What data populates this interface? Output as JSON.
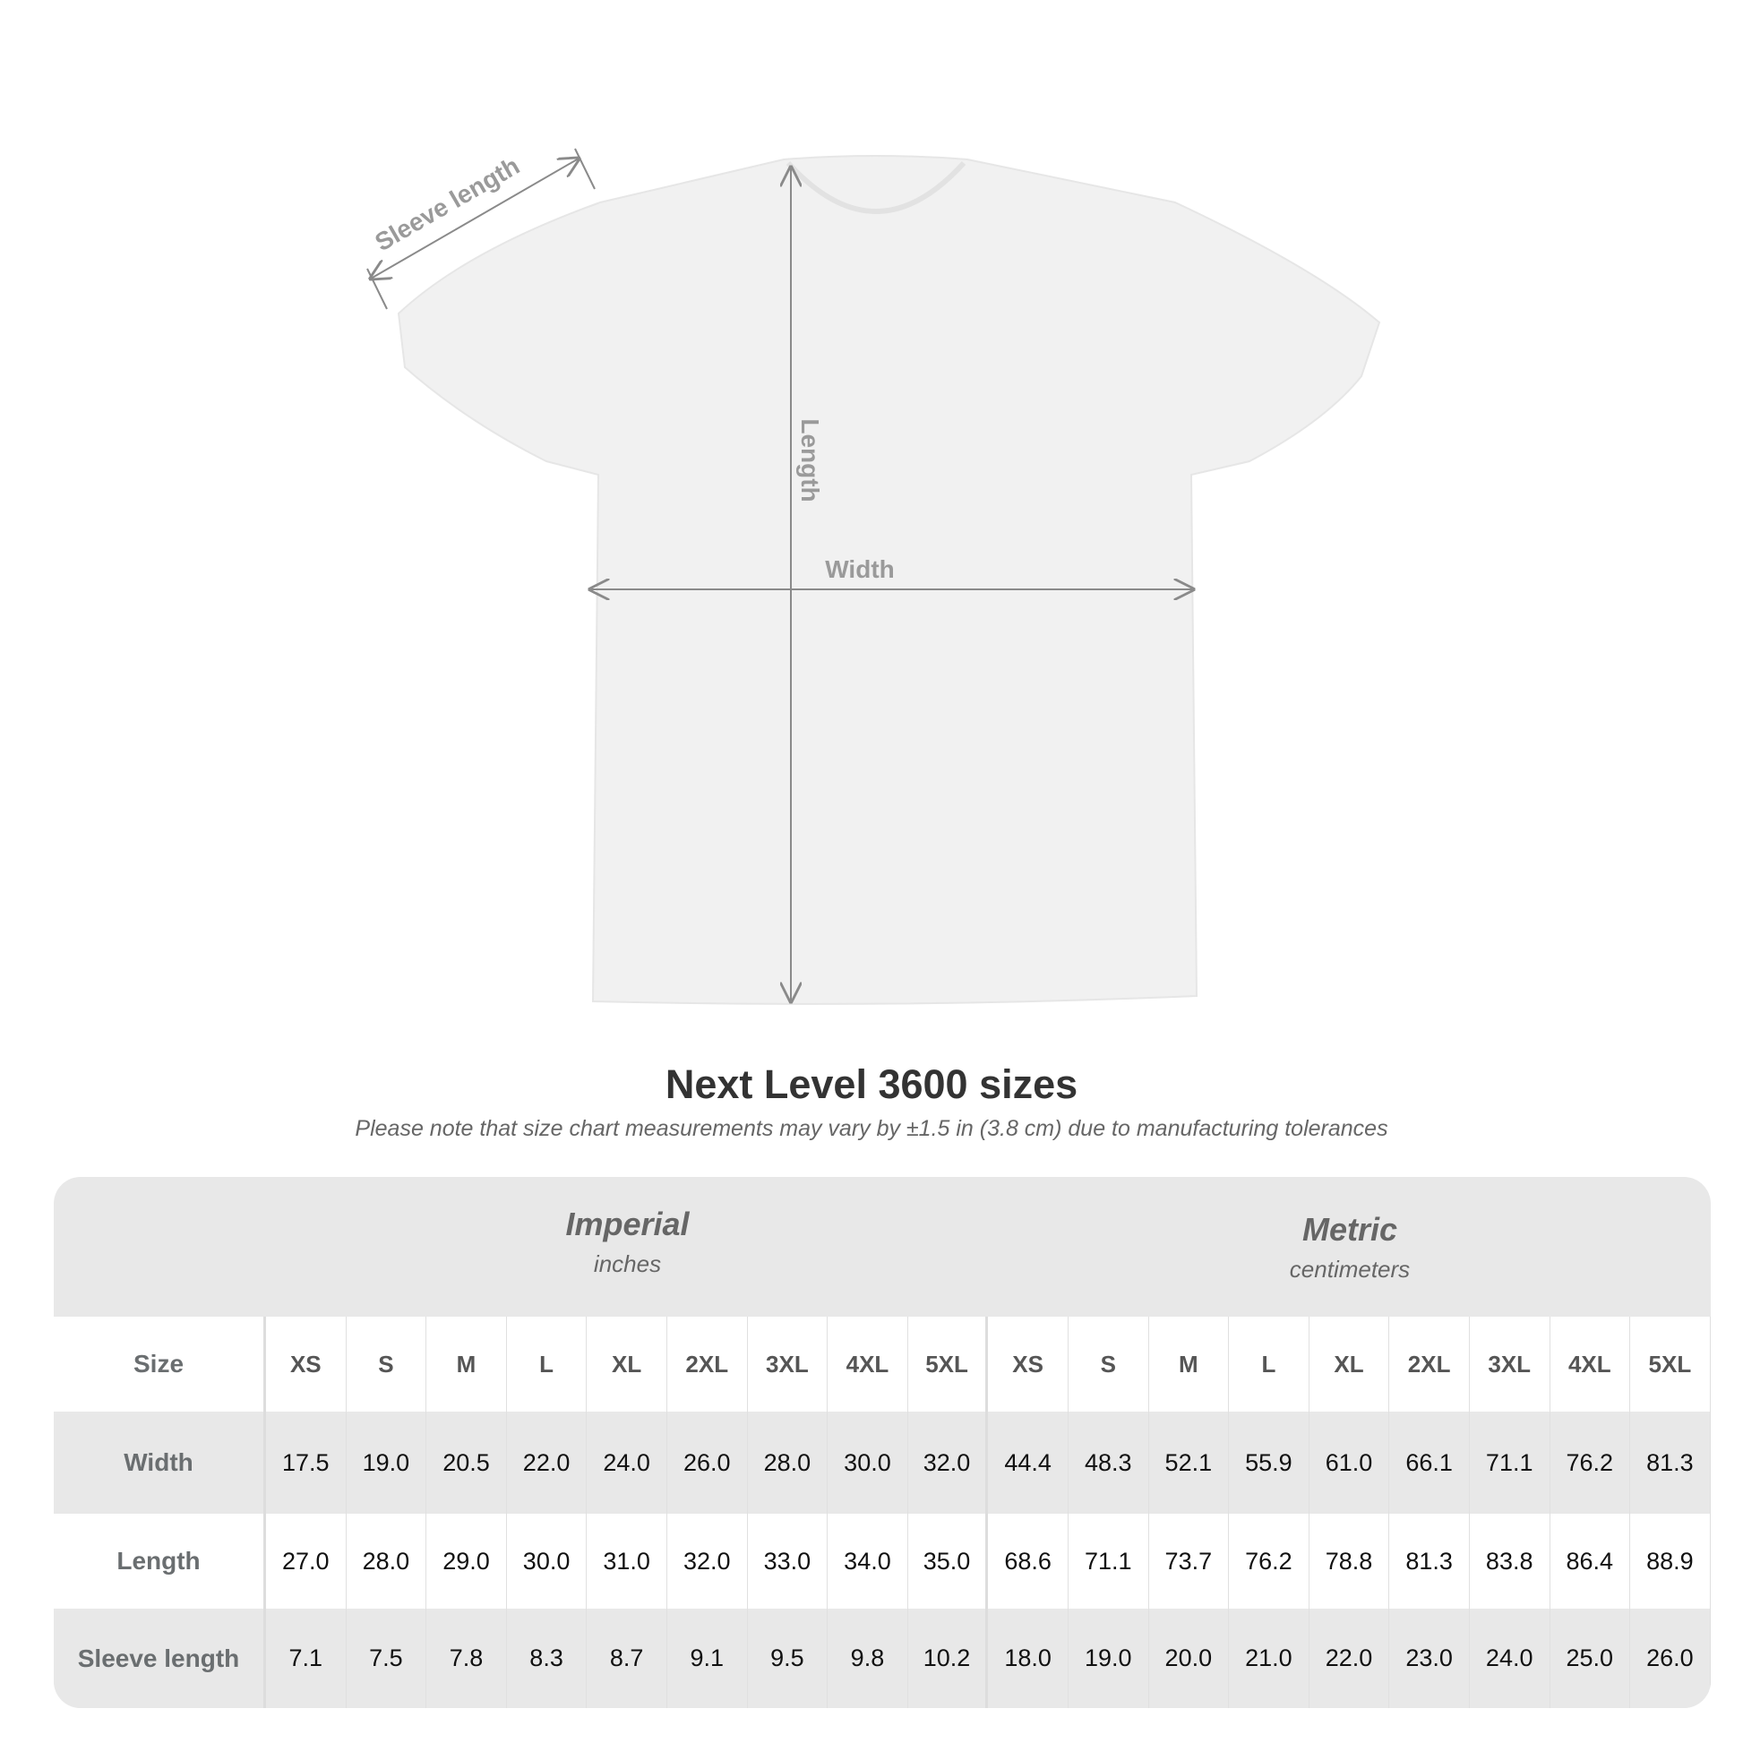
{
  "diagram": {
    "labels": {
      "sleeve": "Sleeve length",
      "length": "Length",
      "width": "Width"
    },
    "shirt_color": "#f1f1f1",
    "arrow_color": "#8a8a8a"
  },
  "title": "Next Level 3600 sizes",
  "subtitle": "Please note that size chart measurements may vary by ±1.5 in (3.8 cm) due to manufacturing tolerances",
  "table": {
    "imperial": {
      "name": "Imperial",
      "unit": "inches"
    },
    "metric": {
      "name": "Metric",
      "unit": "centimeters"
    },
    "sizes": [
      "XS",
      "S",
      "M",
      "L",
      "XL",
      "2XL",
      "3XL",
      "4XL",
      "5XL"
    ],
    "rows": [
      {
        "label": "Size"
      },
      {
        "label": "Width",
        "imperial": [
          "17.5",
          "19.0",
          "20.5",
          "22.0",
          "24.0",
          "26.0",
          "28.0",
          "30.0",
          "32.0"
        ],
        "metric": [
          "44.4",
          "48.3",
          "52.1",
          "55.9",
          "61.0",
          "66.1",
          "71.1",
          "76.2",
          "81.3"
        ]
      },
      {
        "label": "Length",
        "imperial": [
          "27.0",
          "28.0",
          "29.0",
          "30.0",
          "31.0",
          "32.0",
          "33.0",
          "34.0",
          "35.0"
        ],
        "metric": [
          "68.6",
          "71.1",
          "73.7",
          "76.2",
          "78.8",
          "81.3",
          "83.8",
          "86.4",
          "88.9"
        ]
      },
      {
        "label": "Sleeve length",
        "imperial": [
          "7.1",
          "7.5",
          "7.8",
          "8.3",
          "8.7",
          "9.1",
          "9.5",
          "9.8",
          "10.2"
        ],
        "metric": [
          "18.0",
          "19.0",
          "20.0",
          "21.0",
          "22.0",
          "23.0",
          "24.0",
          "25.0",
          "26.0"
        ]
      }
    ]
  }
}
